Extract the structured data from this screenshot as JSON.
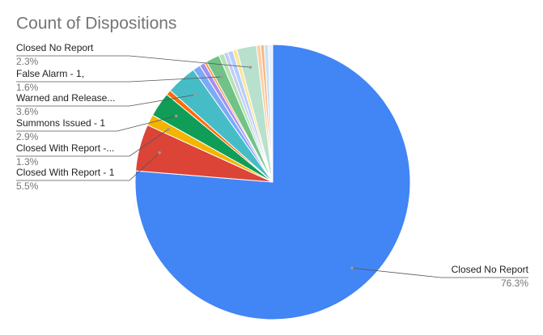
{
  "chart_data": {
    "type": "pie",
    "title": "Count of Dispositions",
    "categories": [
      "Closed No Report",
      "Closed With Report - 1",
      "Closed With Report -...",
      "Summons Issued - 1",
      null,
      "Warned and Release...",
      null,
      null,
      null,
      "False Alarm - 1,",
      null,
      null,
      null,
      null,
      "Closed No Report",
      null,
      null,
      null,
      null
    ],
    "values": [
      76.3,
      5.5,
      1.3,
      2.9,
      0.6,
      3.6,
      0.9,
      0.6,
      0.3,
      1.6,
      0.6,
      0.5,
      0.6,
      0.5,
      2.3,
      0.5,
      0.4,
      0.5,
      0.5
    ],
    "value_labels": [
      "76.3%",
      "5.5%",
      "1.3%",
      "2.9%",
      null,
      "3.6%",
      null,
      null,
      null,
      "1.6%",
      null,
      null,
      null,
      null,
      "2.3%",
      null,
      null,
      null,
      null
    ],
    "colors": [
      "#4285f4",
      "#db4437",
      "#f4b400",
      "#0f9d58",
      "#ff6d01",
      "#46bdc6",
      "#7baaf7",
      "#a390f0",
      "#ff994d",
      "#71c287",
      "#b6e3b4",
      "#c5cbf7",
      "#b3cefb",
      "#fde49b",
      "#b7e1cd",
      "#fbcfa8",
      "#f9b87c",
      "#c6e3fb",
      "#e8f0fe"
    ]
  }
}
